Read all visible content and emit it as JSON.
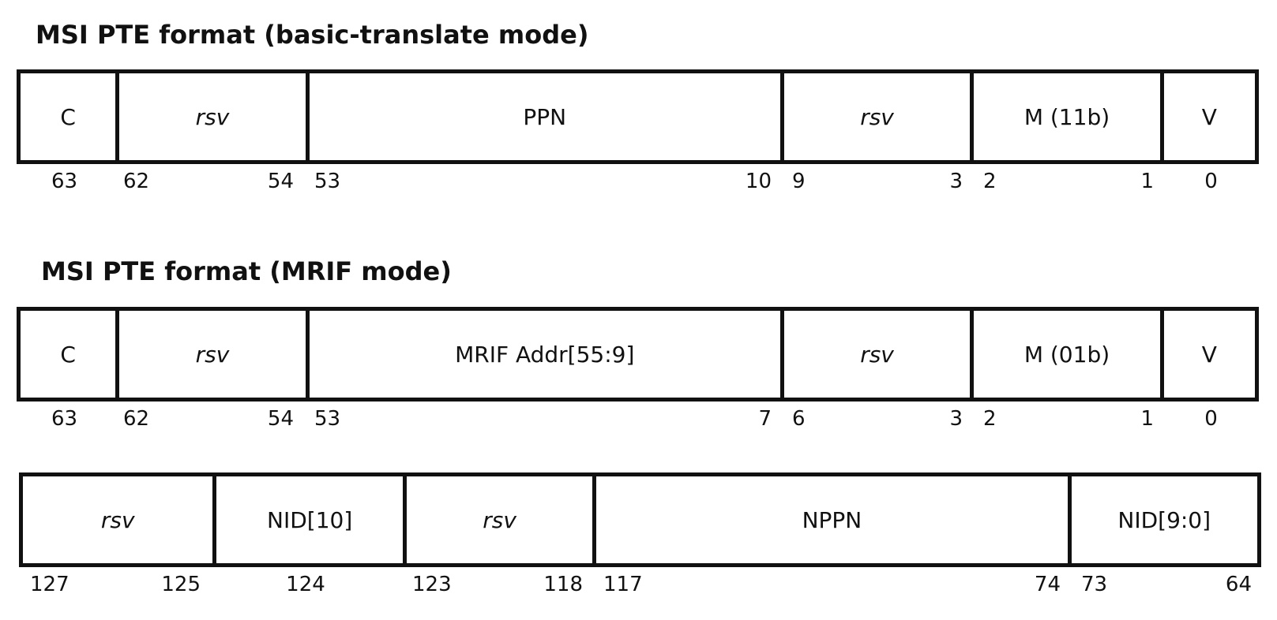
{
  "diagrams": [
    {
      "title": "MSI PTE format (basic-translate mode)",
      "fields": [
        {
          "label": "C",
          "italic": false,
          "span": 1,
          "hi": "63",
          "lo": ""
        },
        {
          "label": "rsv",
          "italic": true,
          "span": 2,
          "hi": "62",
          "lo": "54"
        },
        {
          "label": "PPN",
          "italic": false,
          "span": 5,
          "hi": "53",
          "lo": "10"
        },
        {
          "label": "rsv",
          "italic": true,
          "span": 2,
          "hi": "9",
          "lo": "3"
        },
        {
          "label": "M (11b)",
          "italic": false,
          "span": 2,
          "hi": "2",
          "lo": "1"
        },
        {
          "label": "V",
          "italic": false,
          "span": 1,
          "hi": "0",
          "lo": ""
        }
      ]
    },
    {
      "title": "MSI PTE format (MRIF mode)",
      "fields": [
        {
          "label": "C",
          "italic": false,
          "span": 1,
          "hi": "63",
          "lo": ""
        },
        {
          "label": "rsv",
          "italic": true,
          "span": 2,
          "hi": "62",
          "lo": "54"
        },
        {
          "label": "MRIF Addr[55:9]",
          "italic": false,
          "span": 5,
          "hi": "53",
          "lo": "7"
        },
        {
          "label": "rsv",
          "italic": true,
          "span": 2,
          "hi": "6",
          "lo": "3"
        },
        {
          "label": "M (01b)",
          "italic": false,
          "span": 2,
          "hi": "2",
          "lo": "1"
        },
        {
          "label": "V",
          "italic": false,
          "span": 1,
          "hi": "0",
          "lo": ""
        }
      ]
    },
    {
      "title": "",
      "fields": [
        {
          "label": "rsv",
          "italic": true,
          "span": 2,
          "hi": "127",
          "lo": "125"
        },
        {
          "label": "NID[10]",
          "italic": false,
          "span": 2,
          "hi": "124",
          "lo": ""
        },
        {
          "label": "rsv",
          "italic": true,
          "span": 2,
          "hi": "123",
          "lo": "118"
        },
        {
          "label": "NPPN",
          "italic": false,
          "span": 5,
          "hi": "117",
          "lo": "74"
        },
        {
          "label": "NID[9:0]",
          "italic": false,
          "span": 2,
          "hi": "73",
          "lo": "64"
        }
      ]
    }
  ]
}
